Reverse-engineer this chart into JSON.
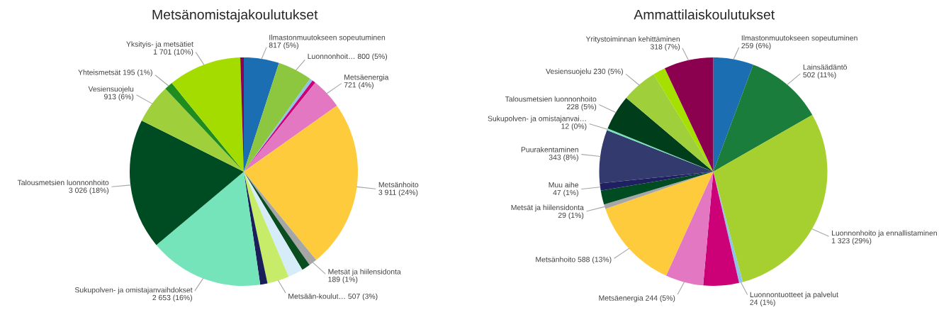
{
  "chart_data": [
    {
      "type": "pie",
      "title": "Metsänomistajakoulutukset",
      "categories": [
        "Ilmastonmuutokseen sopeutuminen",
        "Luonnonhoit…",
        null,
        null,
        "Metsäenergia",
        "Metsänhoito",
        "Metsät ja hiilensidonta",
        null,
        null,
        "Metsään-koulut…",
        null,
        "Sukupolven- ja omistajanvaihdokset",
        "Talousmetsien luonnonhoito",
        "Vesiensuojelu",
        "Yhteismetsät",
        "Yksityis- ja metsätiet",
        null
      ],
      "values": [
        817,
        800,
        70,
        80,
        721,
        3911,
        189,
        200,
        350,
        507,
        170,
        2653,
        3026,
        913,
        195,
        1701,
        80
      ],
      "value_labels": [
        "817 (5%)",
        "800 (5%)",
        null,
        null,
        "721 (4%)",
        "3 911 (24%)",
        "189 (1%)",
        null,
        null,
        "507 (3%)",
        null,
        "2 653 (16%)",
        "3 026 (18%)",
        "913 (6%)",
        "195 (1%)",
        "1 701 (10%)",
        null
      ],
      "colors": [
        "#1b6eb1",
        "#8dc63f",
        "#8fc3ea",
        "#cc0077",
        "#e377c2",
        "#fecb3c",
        "#a6a6a6",
        "#0a4d1e",
        "#d6ecf8",
        "#c6ec6a",
        "#1a1f5a",
        "#76e4bb",
        "#004c22",
        "#9fcf3a",
        "#1e8c1e",
        "#a5dc00",
        "#8c0050"
      ]
    },
    {
      "type": "pie",
      "title": "Ammattilaiskoulutukset",
      "categories": [
        "Ilmastonmuutokseen sopeutuminen",
        "Lainsäädäntö",
        "Luonnonhoito ja ennallistaminen",
        "Luonnontuotteet ja palvelut",
        null,
        "Metsäenergia",
        "Metsänhoito",
        "Metsät ja hiilensidonta",
        null,
        "Muu aihe",
        "Puurakentaminen",
        "Sukupolven- ja omistajanvai…",
        "Talousmetsien luonnonhoito",
        "Vesiensuojelu",
        null,
        "Yritystoiminnan kehittäminen"
      ],
      "values": [
        259,
        502,
        1323,
        24,
        230,
        244,
        588,
        29,
        90,
        47,
        343,
        12,
        228,
        230,
        80,
        318
      ],
      "value_labels": [
        "259 (6%)",
        "502 (11%)",
        "1 323 (29%)",
        "24 (1%)",
        null,
        "244 (5%)",
        "588 (13%)",
        "29 (1%)",
        null,
        "47 (1%)",
        "343 (8%)",
        "12 (0%)",
        "228 (5%)",
        "230 (5%)",
        null,
        "318 (7%)"
      ],
      "colors": [
        "#1b6eb1",
        "#1a7d3c",
        "#a6cf30",
        "#8fc3ea",
        "#cc0077",
        "#e377c2",
        "#fecb3c",
        "#a6a6a6",
        "#004c22",
        "#1f2060",
        "#323a6e",
        "#76e4bb",
        "#003d1a",
        "#9fcf3a",
        "#a5e000",
        "#8c0050"
      ]
    }
  ]
}
